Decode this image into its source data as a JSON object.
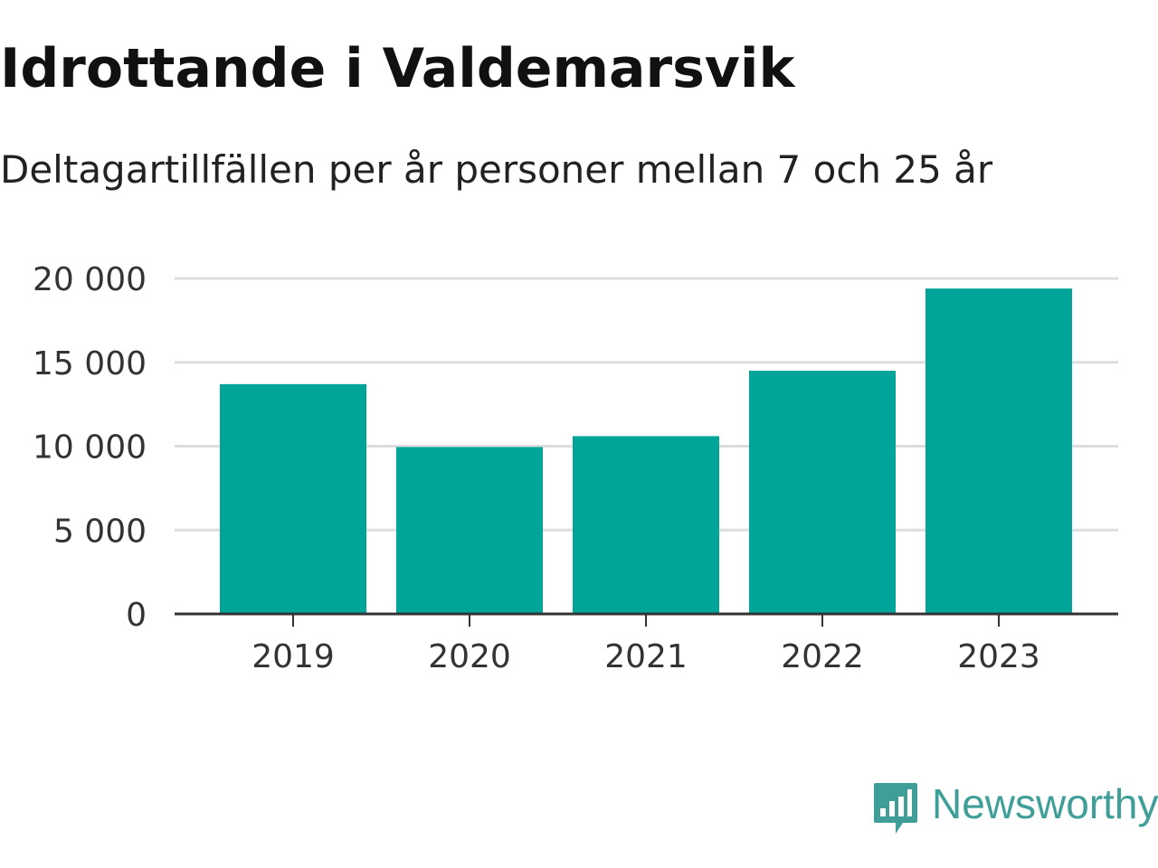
{
  "header": {
    "title": "Idrottande i Valdemarsvik",
    "subtitle": "Deltagartillfällen per år personer mellan 7 och 25 år"
  },
  "brand": {
    "name": "Newsworthy",
    "icon": "newsworthy-logo-icon",
    "color": "#3f9f98"
  },
  "chart_data": {
    "type": "bar",
    "title": "Idrottande i Valdemarsvik",
    "subtitle": "Deltagartillfällen per år personer mellan 7 och 25 år",
    "categories": [
      "2019",
      "2020",
      "2021",
      "2022",
      "2023"
    ],
    "values": [
      13700,
      9950,
      10600,
      14500,
      19400
    ],
    "ylim": [
      0,
      20000
    ],
    "yticks": [
      0,
      5000,
      10000,
      15000,
      20000
    ],
    "ytick_labels": [
      "0",
      "5 000",
      "10 000",
      "15 000",
      "20 000"
    ],
    "xlabel": "",
    "ylabel": "",
    "grid": true,
    "legend": "none",
    "bar_color": "#00a499",
    "grid_color": "#dddddd",
    "axis_color": "#333333"
  }
}
